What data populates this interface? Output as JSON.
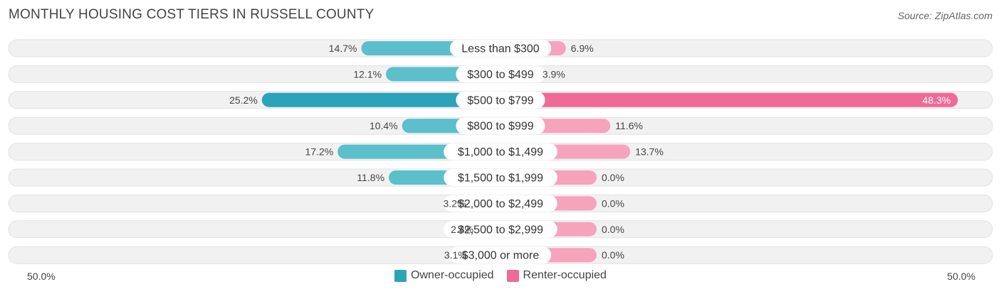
{
  "chart_data": {
    "type": "bar",
    "orientation": "diverging-horizontal",
    "title": "MONTHLY HOUSING COST TIERS IN RUSSELL COUNTY",
    "source": "Source: ZipAtlas.com",
    "categories": [
      "Less than $300",
      "$300 to $499",
      "$500 to $799",
      "$800 to $999",
      "$1,000 to $1,499",
      "$1,500 to $1,999",
      "$2,000 to $2,499",
      "$2,500 to $2,999",
      "$3,000 or more"
    ],
    "series": [
      {
        "name": "Owner-occupied",
        "values": [
          14.7,
          12.1,
          25.2,
          10.4,
          17.2,
          11.8,
          3.2,
          2.4,
          3.1
        ],
        "labels": [
          "14.7%",
          "12.1%",
          "25.2%",
          "10.4%",
          "17.2%",
          "11.8%",
          "3.2%",
          "2.4%",
          "3.1%"
        ]
      },
      {
        "name": "Renter-occupied",
        "values": [
          6.9,
          3.9,
          48.3,
          11.6,
          13.7,
          0.0,
          0.0,
          0.0,
          0.0
        ],
        "labels": [
          "6.9%",
          "3.9%",
          "48.3%",
          "11.6%",
          "13.7%",
          "0.0%",
          "0.0%",
          "0.0%",
          "0.0%"
        ]
      }
    ],
    "xlim": [
      -50,
      50
    ],
    "axis_left_label": "50.0%",
    "axis_right_label": "50.0%",
    "legend_position": "bottom-center",
    "colors": {
      "owner": "#5bbfcc",
      "owner_strong": "#2ba3b8",
      "renter": "#f6a3be",
      "renter_strong": "#f06a97",
      "track": "#f1f1f1"
    }
  }
}
